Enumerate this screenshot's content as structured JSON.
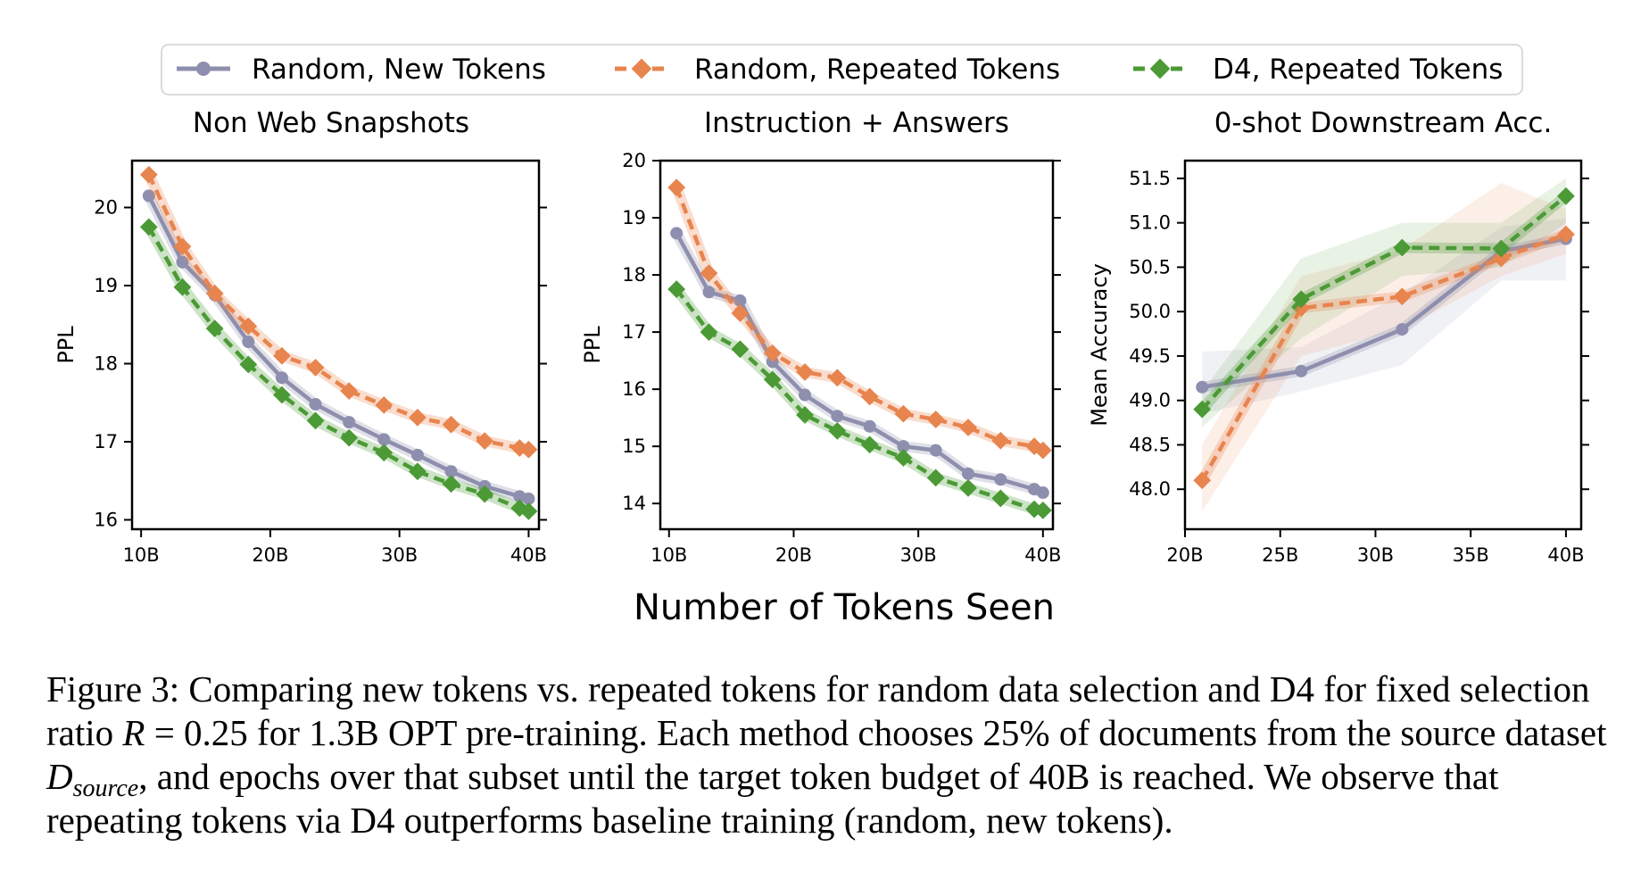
{
  "legend": [
    {
      "label": "Random, New Tokens",
      "color": "#8e8fae",
      "marker": "circle",
      "dashed": false
    },
    {
      "label": "Random, Repeated Tokens",
      "color": "#e8844e",
      "marker": "diamond",
      "dashed": true
    },
    {
      "label": "D4, Repeated Tokens",
      "color": "#4b9a36",
      "marker": "diamond",
      "dashed": true
    }
  ],
  "shared_xlabel": "Number of Tokens Seen",
  "caption": {
    "p1": "Figure 3: Comparing new tokens vs. repeated tokens for random data selection and D4 for fixed selection ratio ",
    "m1": "R",
    "p2": " = 0.25 for 1.3B OPT pre-training. Each method chooses 25% of documents from the source dataset ",
    "m2": "D",
    "m2sub": "source",
    "p3": ", and epochs over that subset until the target token budget of 40B is reached. We observe that repeating tokens via D4 outperforms baseline training (random, new tokens)."
  },
  "chart_data": [
    {
      "type": "line",
      "title": "Non Web Snapshots",
      "xlabel": "",
      "ylabel": "PPL",
      "xlim": [
        9.3,
        40.8
      ],
      "ylim": [
        15.88,
        20.6
      ],
      "xticks": [
        10,
        20,
        30,
        40
      ],
      "xtick_labels": [
        "10B",
        "20B",
        "30B",
        "40B"
      ],
      "yticks": [
        16,
        17,
        18,
        19,
        20
      ],
      "ytick_labels": [
        "16",
        "17",
        "18",
        "19",
        "20"
      ],
      "series": [
        {
          "name": "Random, New Tokens",
          "x": [
            10.6,
            13.2,
            15.7,
            18.3,
            20.9,
            23.5,
            26.1,
            28.8,
            31.4,
            34.0,
            36.6,
            39.3,
            40.0
          ],
          "y": [
            20.15,
            19.3,
            18.88,
            18.28,
            17.82,
            17.48,
            17.25,
            17.03,
            16.83,
            16.62,
            16.43,
            16.3,
            16.27
          ]
        },
        {
          "name": "Random, Repeated Tokens",
          "x": [
            10.6,
            13.2,
            15.7,
            18.3,
            20.9,
            23.5,
            26.1,
            28.8,
            31.4,
            34.0,
            36.6,
            39.3,
            40.0
          ],
          "y": [
            20.42,
            19.5,
            18.9,
            18.48,
            18.1,
            17.95,
            17.65,
            17.47,
            17.31,
            17.22,
            17.01,
            16.92,
            16.9
          ]
        },
        {
          "name": "D4, Repeated Tokens",
          "x": [
            10.6,
            13.2,
            15.7,
            18.3,
            20.9,
            23.5,
            26.1,
            28.8,
            31.4,
            34.0,
            36.6,
            39.3,
            40.0
          ],
          "y": [
            19.75,
            18.98,
            18.45,
            17.99,
            17.6,
            17.27,
            17.05,
            16.86,
            16.62,
            16.46,
            16.33,
            16.15,
            16.11
          ]
        }
      ]
    },
    {
      "type": "line",
      "title": "Instruction + Answers",
      "xlabel": "",
      "ylabel": "PPL",
      "xlim": [
        9.3,
        40.8
      ],
      "ylim": [
        13.55,
        20.0
      ],
      "xticks": [
        10,
        20,
        30,
        40
      ],
      "xtick_labels": [
        "10B",
        "20B",
        "30B",
        "40B"
      ],
      "yticks": [
        14,
        15,
        16,
        17,
        18,
        19,
        20
      ],
      "ytick_labels": [
        "14",
        "15",
        "16",
        "17",
        "18",
        "19",
        "20"
      ],
      "series": [
        {
          "name": "Random, New Tokens",
          "x": [
            10.6,
            13.2,
            15.7,
            18.3,
            20.9,
            23.5,
            26.1,
            28.8,
            31.4,
            34.0,
            36.6,
            39.3,
            40.0
          ],
          "y": [
            18.73,
            17.7,
            17.55,
            16.48,
            15.9,
            15.53,
            15.35,
            15.0,
            14.93,
            14.52,
            14.42,
            14.25,
            14.19
          ]
        },
        {
          "name": "Random, Repeated Tokens",
          "x": [
            10.6,
            13.2,
            15.7,
            18.3,
            20.9,
            23.5,
            26.1,
            28.8,
            31.4,
            34.0,
            36.6,
            39.3,
            40.0
          ],
          "y": [
            19.53,
            18.03,
            17.33,
            16.63,
            16.3,
            16.2,
            15.87,
            15.57,
            15.47,
            15.33,
            15.1,
            15.0,
            14.93
          ]
        },
        {
          "name": "D4, Repeated Tokens",
          "x": [
            10.6,
            13.2,
            15.7,
            18.3,
            20.9,
            23.5,
            26.1,
            28.8,
            31.4,
            34.0,
            36.6,
            39.3,
            40.0
          ],
          "y": [
            17.75,
            17.0,
            16.7,
            16.17,
            15.55,
            15.27,
            15.03,
            14.8,
            14.45,
            14.27,
            14.09,
            13.9,
            13.88
          ]
        }
      ]
    },
    {
      "type": "line",
      "title": "0-shot Downstream Acc.",
      "xlabel": "",
      "ylabel": "Mean Accuracy",
      "xlim": [
        20,
        40.8
      ],
      "ylim": [
        47.55,
        51.7
      ],
      "xticks": [
        20,
        25,
        30,
        35,
        40
      ],
      "xtick_labels": [
        "20B",
        "25B",
        "30B",
        "35B",
        "40B"
      ],
      "yticks": [
        48.0,
        48.5,
        49.0,
        49.5,
        50.0,
        50.5,
        51.0,
        51.5
      ],
      "ytick_labels": [
        "48.0",
        "48.5",
        "49.0",
        "49.5",
        "50.0",
        "50.5",
        "51.0",
        "51.5"
      ],
      "series": [
        {
          "name": "Random, New Tokens",
          "x": [
            20.9,
            26.1,
            31.4,
            36.6,
            40.0
          ],
          "y": [
            49.15,
            49.33,
            49.8,
            50.68,
            50.82
          ],
          "band_low": [
            48.85,
            49.1,
            49.4,
            50.35,
            50.35
          ],
          "band_high": [
            49.55,
            49.6,
            50.2,
            50.95,
            51.05
          ]
        },
        {
          "name": "Random, Repeated Tokens",
          "x": [
            20.9,
            26.1,
            31.4,
            36.6,
            40.0
          ],
          "y": [
            48.1,
            50.04,
            50.17,
            50.6,
            50.87
          ],
          "band_low": [
            47.75,
            49.5,
            49.8,
            50.4,
            50.65
          ],
          "band_high": [
            48.5,
            50.4,
            50.7,
            51.45,
            51.15
          ]
        },
        {
          "name": "D4, Repeated Tokens",
          "x": [
            20.9,
            26.1,
            31.4,
            36.6,
            40.0
          ],
          "y": [
            48.9,
            50.14,
            50.72,
            50.71,
            51.3
          ],
          "band_low": [
            48.7,
            49.7,
            50.4,
            50.5,
            51.0
          ],
          "band_high": [
            49.1,
            50.6,
            51.0,
            51.0,
            51.5
          ]
        }
      ]
    }
  ]
}
